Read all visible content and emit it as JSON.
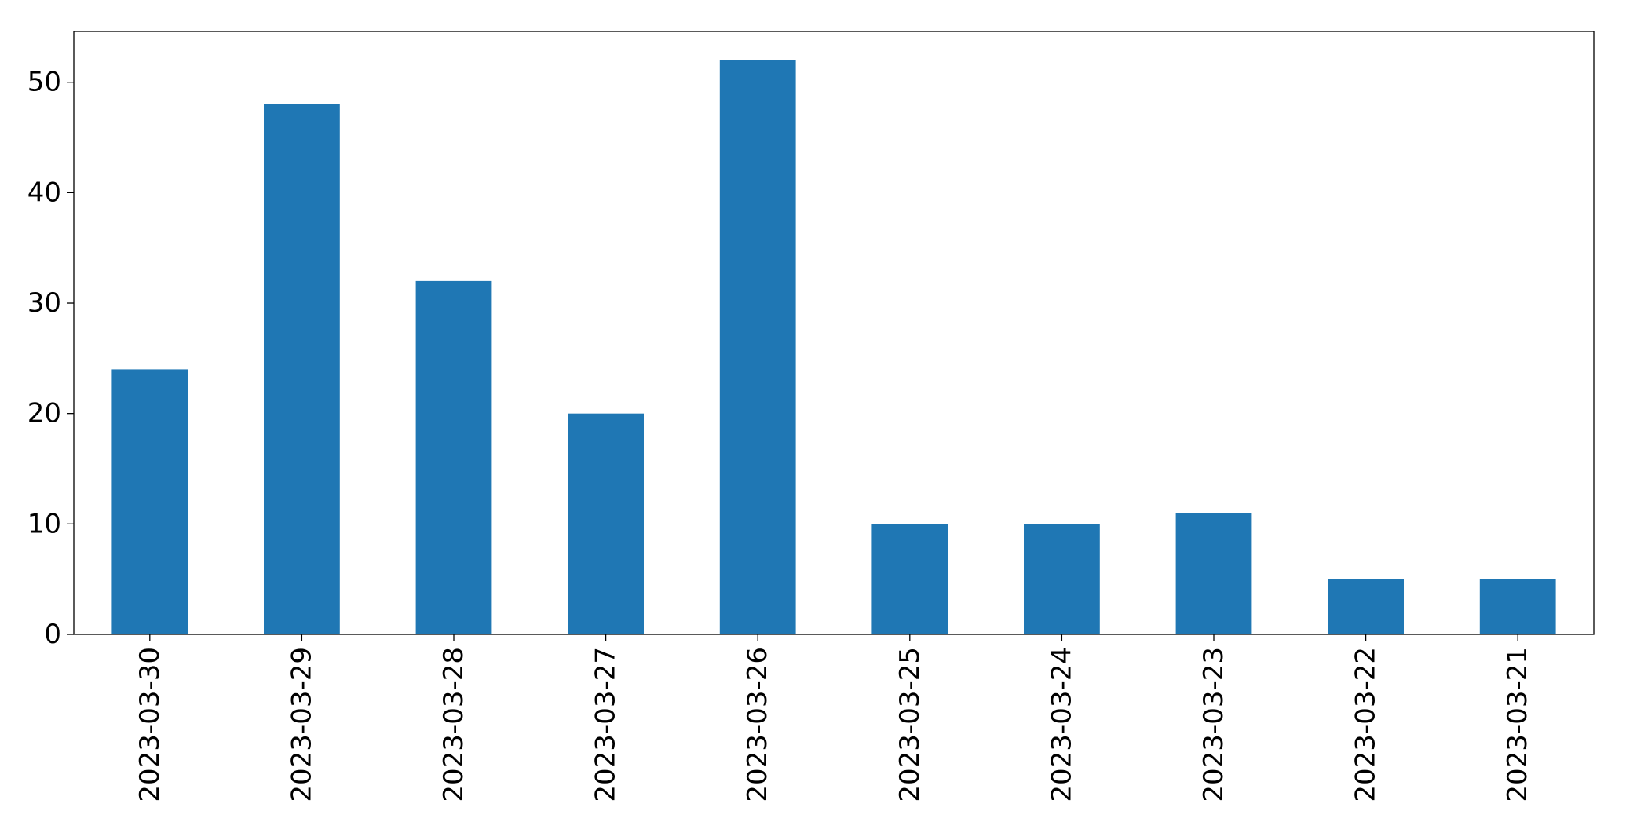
{
  "chart_data": {
    "type": "bar",
    "categories": [
      "2023-03-30",
      "2023-03-29",
      "2023-03-28",
      "2023-03-27",
      "2023-03-26",
      "2023-03-25",
      "2023-03-24",
      "2023-03-23",
      "2023-03-22",
      "2023-03-21"
    ],
    "values": [
      24,
      48,
      32,
      20,
      52,
      10,
      10,
      11,
      5,
      5
    ],
    "color": "#1f77b4",
    "ylim": [
      0,
      54.6
    ],
    "yticks": [
      0,
      10,
      20,
      30,
      40,
      50
    ],
    "grid": false
  }
}
